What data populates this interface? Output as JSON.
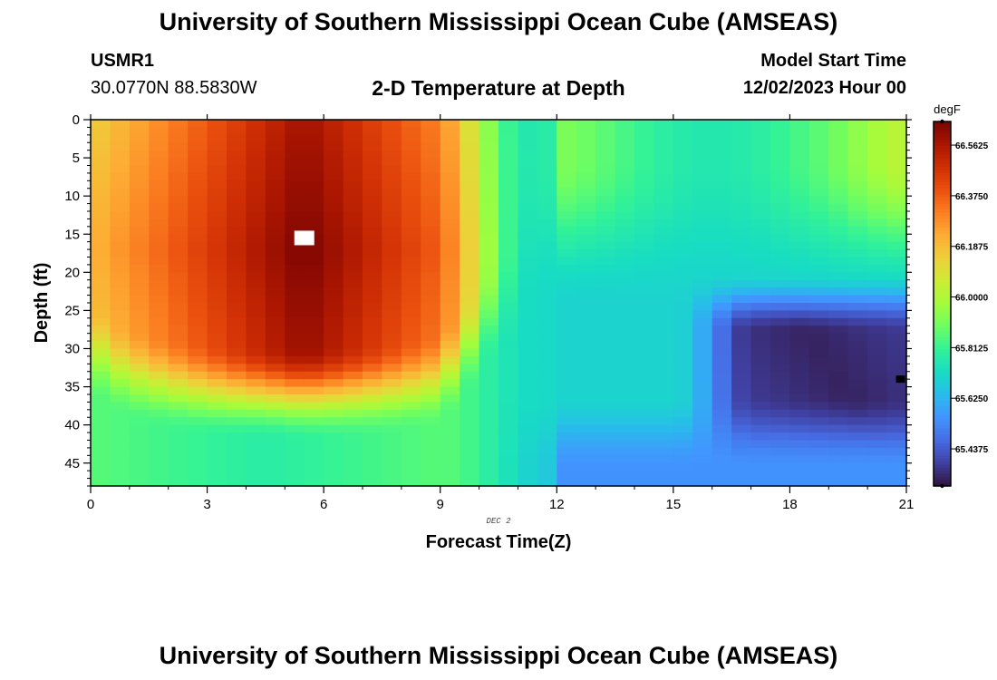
{
  "header": {
    "title": "University of Southern Mississippi Ocean Cube (AMSEAS)",
    "station_id": "USMR1",
    "coordinates": "30.0770N  88.5830W",
    "subtitle": "2-D Temperature at Depth",
    "start_label": "Model Start Time",
    "start_value": "12/02/2023 Hour 00"
  },
  "footer": {
    "title": "University of Southern Mississippi Ocean Cube (AMSEAS)"
  },
  "chart_data": {
    "type": "heatmap",
    "title": "2-D Temperature at Depth",
    "xlabel": "Forecast Time(Z)",
    "ylabel": "Depth (ft)",
    "date_annotation": "DEC 2",
    "xlim": [
      0,
      21
    ],
    "ylim": [
      48,
      0
    ],
    "x_ticks": [
      "0",
      "3",
      "6",
      "9",
      "12",
      "15",
      "18",
      "21"
    ],
    "x_tick_values": [
      0,
      3,
      6,
      9,
      12,
      15,
      18,
      21
    ],
    "y_ticks": [
      "0",
      "5",
      "10",
      "15",
      "20",
      "25",
      "30",
      "35",
      "40",
      "45"
    ],
    "y_tick_values": [
      0,
      5,
      10,
      15,
      20,
      25,
      30,
      35,
      40,
      45
    ],
    "colorbar": {
      "units": "degF",
      "min": 65.3,
      "max": 66.65,
      "labels": [
        "66.5625",
        "66.3750",
        "66.1875",
        "66.0000",
        "65.8125",
        "65.6250",
        "65.4375"
      ],
      "label_values": [
        66.5625,
        66.375,
        66.1875,
        66.0,
        65.8125,
        65.625,
        65.4375
      ]
    },
    "x_cells": 42,
    "y_cells": 48,
    "field_description": "Warm core (~66.65 degF) at hours 4-7 from 0-30 ft, cooling with depth to ~65.85 degF near 47 ft; abrupt transition near hour 10-11; cold pool (~65.35 degF) at hours 16-21 from 24-38 ft; surface near 66.0 degF at hour 21.",
    "markers": [
      {
        "name": "white-marker",
        "x": 5.5,
        "y": 15.5,
        "color": "#ffffff"
      },
      {
        "name": "black-marker",
        "x": 20.85,
        "y": 34,
        "color": "#000000"
      }
    ]
  },
  "colors": {
    "axis": "#000000",
    "background": "#ffffff"
  }
}
